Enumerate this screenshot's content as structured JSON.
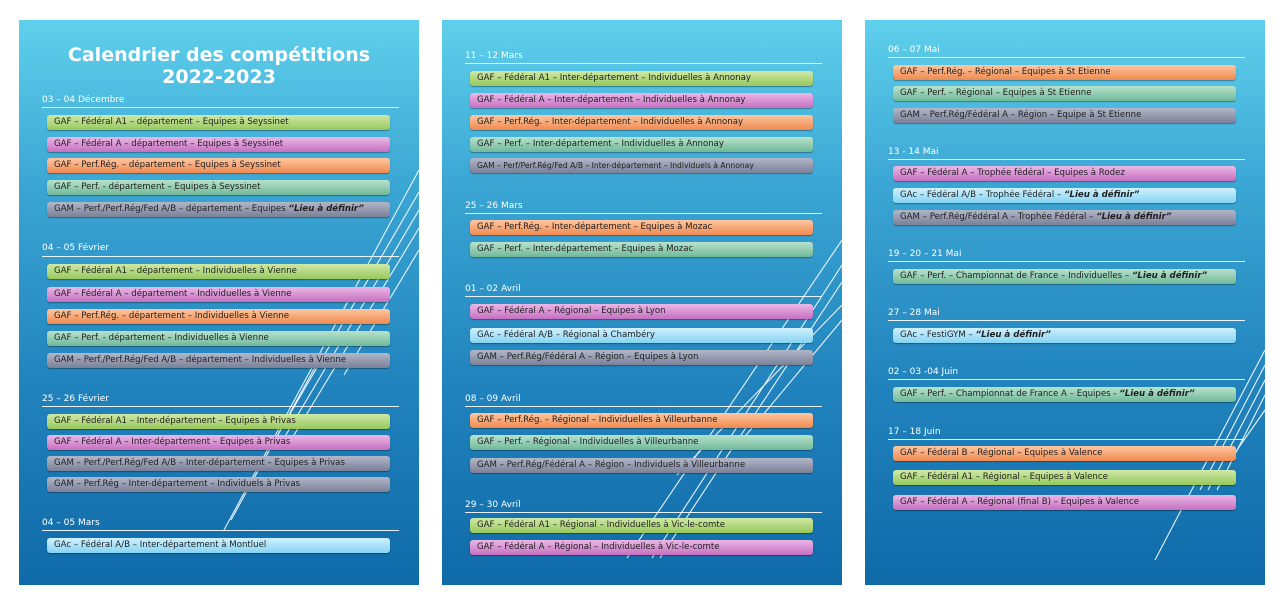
{
  "title": {
    "line1": "Calendrier des compétitions",
    "line2": "2022-2023"
  },
  "colors": {
    "green": "#98c95c",
    "pink": "#c670c0",
    "orange": "#f08a4f",
    "teal": "#70b89a",
    "gray": "#7a8098",
    "blue": "#85d4f3"
  },
  "panels": [
    {
      "sections": [
        {
          "label": "03 – 04 Décembre",
          "items": [
            {
              "text": "GAF – Fédéral A1 – département – Equipes à Seyssinet",
              "color": "green"
            },
            {
              "text": "GAF – Fédéral A – département – Equipes à Seyssinet",
              "color": "pink"
            },
            {
              "text": "GAF – Perf.Rég. – département – Equipes à Seyssinet",
              "color": "orange"
            },
            {
              "text": "GAF – Perf. - département – Equipes à Seyssinet",
              "color": "teal"
            },
            {
              "text": "GAM – Perf./Perf.Rég/Fed A/B – département – Equipes ",
              "note": "“Lieu à définir”",
              "color": "gray"
            }
          ]
        },
        {
          "label": "04 – 05 Février",
          "items": [
            {
              "text": "GAF – Fédéral A1 – département – Individuelles à Vienne",
              "color": "green"
            },
            {
              "text": "GAF – Fédéral A – département – Individuelles à Vienne",
              "color": "pink"
            },
            {
              "text": "GAF – Perf.Rég. – département – Individuelles à Vienne",
              "color": "orange"
            },
            {
              "text": "GAF – Perf. - département – Individuelles à Vienne",
              "color": "teal"
            },
            {
              "text": "GAM – Perf./Perf.Rég/Fed A/B – département – Individuelles à Vienne",
              "color": "gray"
            }
          ]
        },
        {
          "label": "25 – 26 Février",
          "items": [
            {
              "text": "GAF – Fédéral A1 – Inter-département – Equipes à Privas",
              "color": "green"
            },
            {
              "text": "GAF – Fédéral A – Inter-département – Equipes à Privas",
              "color": "pink"
            },
            {
              "text": "GAM – Perf./Perf.Rég/Fed A/B – Inter-département – Equipes à Privas",
              "color": "gray"
            },
            {
              "text": "GAM – Perf.Rég – Inter-département – Individuels à Privas",
              "color": "gray"
            }
          ]
        },
        {
          "label": "04 – 05 Mars",
          "items": [
            {
              "text": "GAc – Fédéral A/B – Inter-département à Montluel",
              "color": "blue"
            }
          ]
        }
      ]
    },
    {
      "sections": [
        {
          "label": "11 – 12 Mars",
          "items": [
            {
              "text": "GAF – Fédéral A1 – Inter-département – Individuelles à Annonay",
              "color": "green"
            },
            {
              "text": "GAF – Fédéral A – Inter-département – Individuelles à Annonay",
              "color": "pink"
            },
            {
              "text": "GAF – Perf.Rég. – Inter-département – Individuelles à Annonay",
              "color": "orange"
            },
            {
              "text": "GAF – Perf. – Inter-département – Individuelles à Annonay",
              "color": "teal"
            },
            {
              "text": "GAM – Perf/Perf.Rég/Fed A/B – Inter-département – Individuels à Annonay",
              "color": "gray"
            }
          ]
        },
        {
          "label": "25 – 26 Mars",
          "items": [
            {
              "text": "GAF – Perf.Rég. – Inter-département – Equipes à Mozac",
              "color": "orange"
            },
            {
              "text": "GAF – Perf. – Inter-département – Equipes à Mozac",
              "color": "teal"
            }
          ]
        },
        {
          "label": "01 – 02 Avril",
          "items": [
            {
              "text": "GAF – Fédéral A – Régional – Equipes à Lyon",
              "color": "pink"
            },
            {
              "text": "GAc – Fédéral A/B – Régional à Chambéry",
              "color": "blue"
            },
            {
              "text": "GAM – Perf.Rég/Fédéral A – Région – Equipes à Lyon",
              "color": "gray"
            }
          ]
        },
        {
          "label": "08 – 09 Avril",
          "items": [
            {
              "text": "GAF – Perf.Rég. – Régional – Individuelles à Villeurbanne",
              "color": "orange"
            },
            {
              "text": "GAF – Perf. – Régional – Individuelles à Villeurbanne",
              "color": "teal"
            },
            {
              "text": "GAM – Perf.Rég/Fédéral A – Région – Individuels à Villeurbanne",
              "color": "gray"
            }
          ]
        },
        {
          "label": "29 – 30 Avril",
          "items": [
            {
              "text": "GAF – Fédéral A1 – Régional – Individuelles à Vic-le-comte",
              "color": "green"
            },
            {
              "text": "GAF – Fédéral A – Régional – Individuelles à Vic-le-comte",
              "color": "pink"
            }
          ]
        }
      ]
    },
    {
      "sections": [
        {
          "label": "06 – 07 Mai",
          "items": [
            {
              "text": "GAF – Perf.Rég. – Régional – Equipes à St Etienne",
              "color": "orange"
            },
            {
              "text": "GAF – Perf. – Régional – Equipes à St Etienne",
              "color": "teal"
            },
            {
              "text": "GAM – Perf.Rég/Fédéral A – Région – Equipe à St Etienne",
              "color": "gray"
            }
          ]
        },
        {
          "label": "13 - 14 Mai",
          "items": [
            {
              "text": "GAF – Fédéral A – Trophée fédéral – Equipes à Rodez",
              "color": "pink"
            },
            {
              "text": "GAc – Fédéral A/B – Trophée Fédéral – ",
              "note": "“Lieu à définir”",
              "color": "blue"
            },
            {
              "text": "GAM – Perf.Rég/Fédéral A – Trophée Fédéral – ",
              "note": "“Lieu à définir”",
              "color": "gray"
            }
          ]
        },
        {
          "label": "19 – 20 – 21 Mai",
          "items": [
            {
              "text": "GAF – Perf. – Championnat de France – Individuelles – ",
              "note": "“Lieu à définir”",
              "color": "teal"
            }
          ]
        },
        {
          "label": "27 – 28 Mai",
          "items": [
            {
              "text": "GAc – FestiGYM – ",
              "note": "“Lieu à définir”",
              "color": "blue"
            }
          ]
        },
        {
          "label": "02 – 03 -04 Juin",
          "items": [
            {
              "text": "GAF – Perf. – Championnat de France A – Equipes - ",
              "note": "“Lieu à définir”",
              "color": "teal"
            }
          ]
        },
        {
          "label": "17 – 18 Juin",
          "items": [
            {
              "text": "GAF – Fédéral B – Régional – Equipes à Valence",
              "color": "orange"
            },
            {
              "text": "GAF – Fédéral A1 – Régional – Equipes à Valence",
              "color": "green"
            },
            {
              "text": "GAF – Fédéral A – Régional (final B) – Equipes à Valence",
              "color": "pink"
            }
          ]
        }
      ]
    }
  ]
}
